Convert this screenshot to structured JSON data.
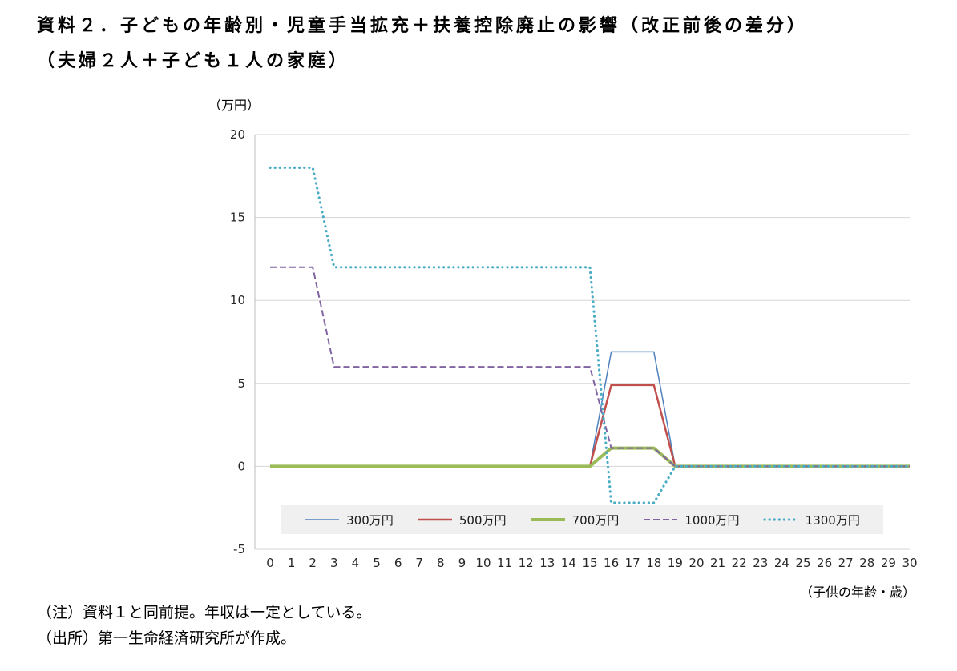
{
  "title": "資料２．子どもの年齢別・児童手当拡充＋扶養控除廃止の影響（改正前後の差分）",
  "subtitle": "（夫婦２人＋子ども１人の家庭）",
  "y_axis_unit": "（万円）",
  "x_axis_title": "（子供の年齢・歳）",
  "notes": [
    "（注）資料１と同前提。年収は一定としている。",
    "（出所）第一生命経済研究所が作成。"
  ],
  "chart_data": {
    "type": "line",
    "title": "資料２．子どもの年齢別・児童手当拡充＋扶養控除廃止の影響（改正前後の差分）",
    "subtitle": "（夫婦２人＋子ども１人の家庭）",
    "xlabel": "子供の年齢・歳",
    "ylabel": "万円",
    "x": [
      0,
      1,
      2,
      3,
      4,
      5,
      6,
      7,
      8,
      9,
      10,
      11,
      12,
      13,
      14,
      15,
      16,
      17,
      18,
      19,
      20,
      21,
      22,
      23,
      24,
      25,
      26,
      27,
      28,
      29,
      30
    ],
    "ylim": [
      -5,
      20
    ],
    "yticks": [
      20,
      15,
      10,
      5,
      0,
      -5
    ],
    "grid": true,
    "legend_position": "bottom-inside",
    "legend_background": "#f0f0f0",
    "gridline_color": "#d5d5d5",
    "axis_color": "#bdbdbd",
    "series": [
      {
        "name": "300万円",
        "color": "#4f81bd",
        "style": "solid",
        "width": 1.5,
        "values": [
          0,
          0,
          0,
          0,
          0,
          0,
          0,
          0,
          0,
          0,
          0,
          0,
          0,
          0,
          0,
          0,
          6.9,
          6.9,
          6.9,
          0,
          0,
          0,
          0,
          0,
          0,
          0,
          0,
          0,
          0,
          0,
          0
        ]
      },
      {
        "name": "500万円",
        "color": "#c0504d",
        "style": "solid",
        "width": 2.5,
        "values": [
          0,
          0,
          0,
          0,
          0,
          0,
          0,
          0,
          0,
          0,
          0,
          0,
          0,
          0,
          0,
          0,
          4.9,
          4.9,
          4.9,
          0,
          0,
          0,
          0,
          0,
          0,
          0,
          0,
          0,
          0,
          0,
          0
        ]
      },
      {
        "name": "700万円",
        "color": "#9bbb59",
        "style": "solid",
        "width": 4,
        "values": [
          0,
          0,
          0,
          0,
          0,
          0,
          0,
          0,
          0,
          0,
          0,
          0,
          0,
          0,
          0,
          0,
          1.1,
          1.1,
          1.1,
          0,
          0,
          0,
          0,
          0,
          0,
          0,
          0,
          0,
          0,
          0,
          0
        ]
      },
      {
        "name": "1000万円",
        "color": "#8064a2",
        "style": "dashed",
        "width": 2,
        "values": [
          12,
          12,
          12,
          6,
          6,
          6,
          6,
          6,
          6,
          6,
          6,
          6,
          6,
          6,
          6,
          6,
          1.1,
          1.1,
          1.1,
          0,
          0,
          0,
          0,
          0,
          0,
          0,
          0,
          0,
          0,
          0,
          0
        ]
      },
      {
        "name": "1300万円",
        "color": "#4bacc6",
        "style": "dotted",
        "width": 3.2,
        "values": [
          18,
          18,
          18,
          12,
          12,
          12,
          12,
          12,
          12,
          12,
          12,
          12,
          12,
          12,
          12,
          12,
          -2.2,
          -2.2,
          -2.2,
          0,
          0,
          0,
          0,
          0,
          0,
          0,
          0,
          0,
          0,
          0,
          0
        ]
      }
    ]
  }
}
